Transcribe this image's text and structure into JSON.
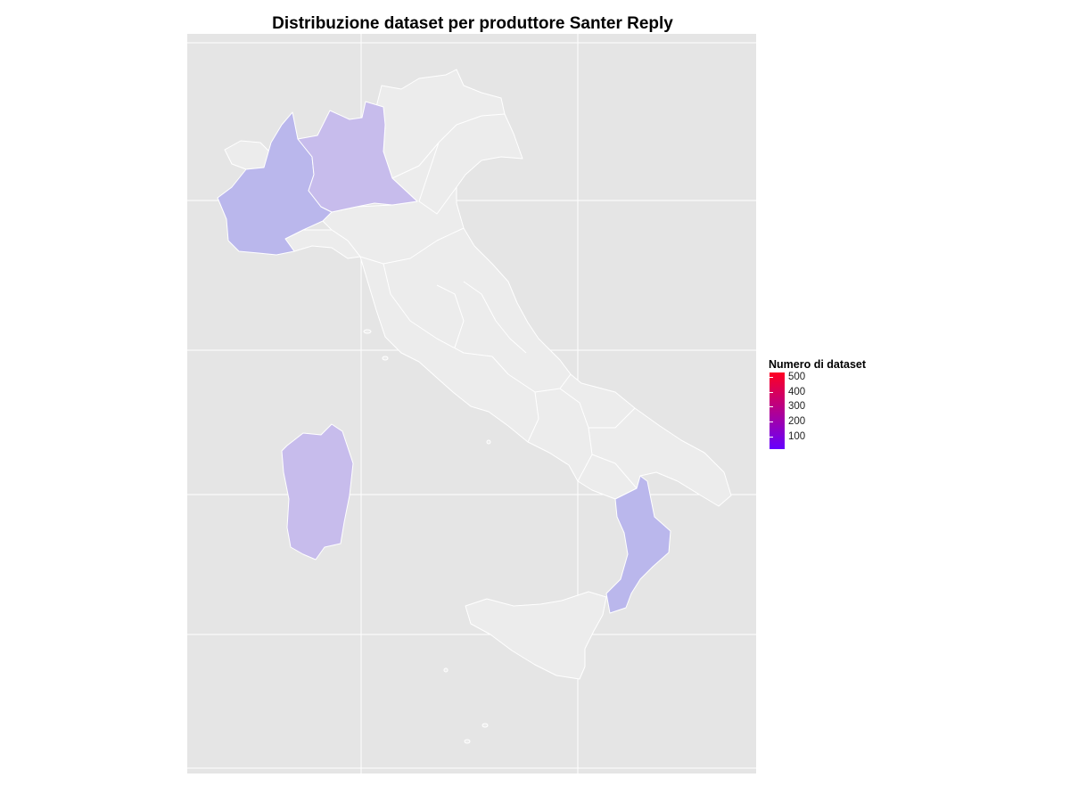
{
  "title": "Distribuzione dataset per produttore Santer Reply",
  "legend": {
    "title": "Numero di dataset",
    "ticks": [
      "500",
      "400",
      "300",
      "200",
      "100"
    ],
    "low_color": "#6600ff",
    "high_color": "#ff0022"
  },
  "colors": {
    "panel_background": "#e5e5e5",
    "grid": "#ffffff",
    "region_no_data": "#ececec",
    "region_border": "#ffffff",
    "fill_piemonte": "#bab7ec",
    "fill_lombardia": "#c7bcec",
    "fill_sardegna": "#c7bcec",
    "fill_calabria": "#bab7ec"
  },
  "regions_highlighted": [
    "Piemonte",
    "Lombardia",
    "Sardegna",
    "Calabria"
  ],
  "regions_without_data": [
    "Valle d'Aosta",
    "Trentino-Alto Adige",
    "Veneto",
    "Friuli-Venezia Giulia",
    "Liguria",
    "Emilia-Romagna",
    "Toscana",
    "Umbria",
    "Marche",
    "Lazio",
    "Abruzzo",
    "Molise",
    "Campania",
    "Puglia",
    "Basilicata",
    "Sicilia"
  ]
}
